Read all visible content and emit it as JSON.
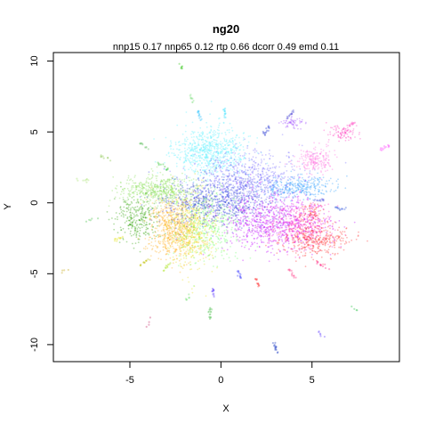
{
  "chart_data": {
    "type": "scatter",
    "title": "ng20",
    "subtitle": "nnp15 0.17 nnp65 0.12 rtp 0.66 dcorr 0.49 emd 0.11",
    "xlabel": "X",
    "ylabel": "Y",
    "xlim": [
      -9.2,
      9.8
    ],
    "ylim": [
      -11.2,
      10.6
    ],
    "x_ticks": [
      -5,
      0,
      5
    ],
    "x_tick_labels": [
      "-5",
      "0",
      "5"
    ],
    "y_ticks": [
      -10,
      -5,
      0,
      5,
      10
    ],
    "y_tick_labels": [
      "-10",
      "-5",
      "0",
      "5",
      "10"
    ],
    "grid": false,
    "legend": "none",
    "point_opacity": 0.35,
    "clusters": [
      {
        "color": "#5cf0ff",
        "cx": -0.6,
        "cy": 3.6,
        "sx": 1.0,
        "sy": 0.9,
        "n": 700
      },
      {
        "color": "#8ae05a",
        "cx": -3.4,
        "cy": 0.9,
        "sx": 1.0,
        "sy": 0.5,
        "n": 500
      },
      {
        "color": "#2aa000",
        "cx": -4.6,
        "cy": -1.2,
        "sx": 0.6,
        "sy": 0.8,
        "n": 260
      },
      {
        "color": "#ffb020",
        "cx": -2.6,
        "cy": -1.8,
        "sx": 0.7,
        "sy": 1.1,
        "n": 650
      },
      {
        "color": "#e8e020",
        "cx": -1.5,
        "cy": -2.0,
        "sx": 0.6,
        "sy": 1.4,
        "n": 450
      },
      {
        "color": "#70ff70",
        "cx": -0.6,
        "cy": -1.4,
        "sx": 0.9,
        "sy": 1.3,
        "n": 450
      },
      {
        "color": "#3040e0",
        "cx": 0.0,
        "cy": 0.2,
        "sx": 1.5,
        "sy": 0.9,
        "n": 800
      },
      {
        "color": "#7a70ff",
        "cx": 1.6,
        "cy": 1.8,
        "sx": 1.4,
        "sy": 0.9,
        "n": 550
      },
      {
        "color": "#c000ff",
        "cx": 2.8,
        "cy": -1.4,
        "sx": 1.4,
        "sy": 1.1,
        "n": 700
      },
      {
        "color": "#ff30c8",
        "cx": 4.3,
        "cy": -1.6,
        "sx": 0.9,
        "sy": 0.8,
        "n": 400
      },
      {
        "color": "#ff3030",
        "cx": 5.2,
        "cy": -2.6,
        "sx": 1.0,
        "sy": 0.6,
        "n": 350
      },
      {
        "color": "#30a0ff",
        "cx": 4.3,
        "cy": 1.1,
        "sx": 1.0,
        "sy": 0.4,
        "n": 300
      },
      {
        "color": "#ff70e0",
        "cx": 5.2,
        "cy": 3.0,
        "sx": 0.5,
        "sy": 0.4,
        "n": 200
      },
      {
        "color": "#ff40c0",
        "cx": 6.7,
        "cy": 5.0,
        "sx": 0.4,
        "sy": 0.3,
        "n": 90
      },
      {
        "color": "#a050ff",
        "cx": 3.9,
        "cy": 5.7,
        "sx": 0.3,
        "sy": 0.2,
        "n": 60
      },
      {
        "color": "#ff3030",
        "cx": 5.0,
        "cy": -0.7,
        "sx": 0.3,
        "sy": 0.3,
        "n": 60
      }
    ],
    "small_groups": [
      {
        "color": "#20c000",
        "x": -2.2,
        "y": 9.8,
        "n": 6
      },
      {
        "color": "#80e080",
        "x": -1.6,
        "y": 7.3,
        "n": 10
      },
      {
        "color": "#20c0ff",
        "x": -1.2,
        "y": 6.2,
        "n": 12
      },
      {
        "color": "#30e0ff",
        "x": 0.2,
        "y": 6.3,
        "n": 12
      },
      {
        "color": "#2030d0",
        "x": 2.5,
        "y": 5.1,
        "n": 14
      },
      {
        "color": "#4040d0",
        "x": 3.8,
        "y": 6.2,
        "n": 12
      },
      {
        "color": "#ff40ff",
        "x": 9.0,
        "y": 3.9,
        "n": 12
      },
      {
        "color": "#ff40c0",
        "x": 7.0,
        "y": 5.4,
        "n": 12
      },
      {
        "color": "#6060e0",
        "x": 5.4,
        "y": 0.2,
        "n": 14
      },
      {
        "color": "#4060e0",
        "x": 6.6,
        "y": -0.4,
        "n": 14
      },
      {
        "color": "#ff2080",
        "x": 5.6,
        "y": -4.4,
        "n": 12
      },
      {
        "color": "#ff3080",
        "x": 3.9,
        "y": -5.0,
        "n": 12
      },
      {
        "color": "#ff3030",
        "x": 2.0,
        "y": -5.6,
        "n": 12
      },
      {
        "color": "#4040ff",
        "x": 1.0,
        "y": -5.0,
        "n": 12
      },
      {
        "color": "#6040ff",
        "x": -0.4,
        "y": -6.3,
        "n": 12
      },
      {
        "color": "#50c050",
        "x": -0.6,
        "y": -7.7,
        "n": 16
      },
      {
        "color": "#60e060",
        "x": -1.8,
        "y": -6.6,
        "n": 6
      },
      {
        "color": "#1030c0",
        "x": 3.0,
        "y": -10.2,
        "n": 14
      },
      {
        "color": "#6040ff",
        "x": 5.5,
        "y": -9.3,
        "n": 6
      },
      {
        "color": "#c02060",
        "x": -4.0,
        "y": -8.5,
        "n": 4
      },
      {
        "color": "#20c040",
        "x": 7.4,
        "y": -7.5,
        "n": 4
      },
      {
        "color": "#c0a000",
        "x": -8.5,
        "y": -4.8,
        "n": 4
      },
      {
        "color": "#40c040",
        "x": -7.0,
        "y": -1.2,
        "n": 5
      },
      {
        "color": "#a0e060",
        "x": -7.6,
        "y": 1.6,
        "n": 8
      },
      {
        "color": "#e0e000",
        "x": -5.8,
        "y": -2.6,
        "n": 10
      },
      {
        "color": "#c0c000",
        "x": -4.2,
        "y": -4.2,
        "n": 12
      },
      {
        "color": "#a0e000",
        "x": -3.0,
        "y": -4.6,
        "n": 10
      },
      {
        "color": "#60c060",
        "x": -4.2,
        "y": 4.0,
        "n": 10
      },
      {
        "color": "#80c040",
        "x": -6.4,
        "y": 3.2,
        "n": 8
      },
      {
        "color": "#20c020",
        "x": -3.2,
        "y": 2.6,
        "n": 10
      }
    ]
  }
}
